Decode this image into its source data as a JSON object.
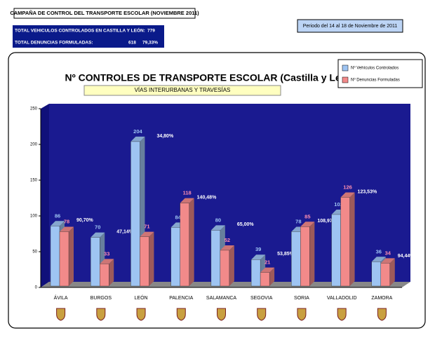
{
  "header": {
    "title": "CAMPAÑA DE CONTROL DEL TRANSPORTE ESCOLAR (NOVIEMBRE 2011)",
    "vehicles_label": "TOTAL VEHICULOS CONTROLADOS EN CASTILLA Y LEÓN:",
    "vehicles_total": 779,
    "fines_label": "TOTAL DENUNCIAS FORMULADAS:",
    "fines_total": 618,
    "fines_ratio": "79,33%",
    "period": "Periodo del 14 al 18 de Noviembre de 2011"
  },
  "chart_data": {
    "type": "bar3d",
    "title": "Nº CONTROLES DE TRANSPORTE ESCOLAR (Castilla y León)",
    "subtitle": "VÍAS INTERURBANAS  Y TRAVESÍAS",
    "categories": [
      "ÁVILA",
      "BURGOS",
      "LEÓN",
      "PALENCIA",
      "SALAMANCA",
      "SEGOVIA",
      "SORIA",
      "VALLADOLID",
      "ZAMORA"
    ],
    "series": [
      {
        "name": "Nº Vehículos Controlados",
        "color": "#9ec4f2",
        "values": [
          86,
          70,
          204,
          84,
          80,
          39,
          78,
          102,
          36
        ]
      },
      {
        "name": "Nº Denuncias Formuladas",
        "color": "#f28a8a",
        "values": [
          78,
          33,
          71,
          118,
          52,
          21,
          85,
          126,
          34
        ]
      }
    ],
    "percent_labels": [
      "90,70%",
      "47,14%",
      "34,80%",
      "140,48%",
      "65,00%",
      "53,85%",
      "108,97%",
      "123,53%",
      "94,44%"
    ],
    "ylim": [
      0,
      250
    ],
    "yticks": [
      0,
      50,
      100,
      150,
      200,
      250
    ],
    "grid": false,
    "legend": "top-right"
  }
}
